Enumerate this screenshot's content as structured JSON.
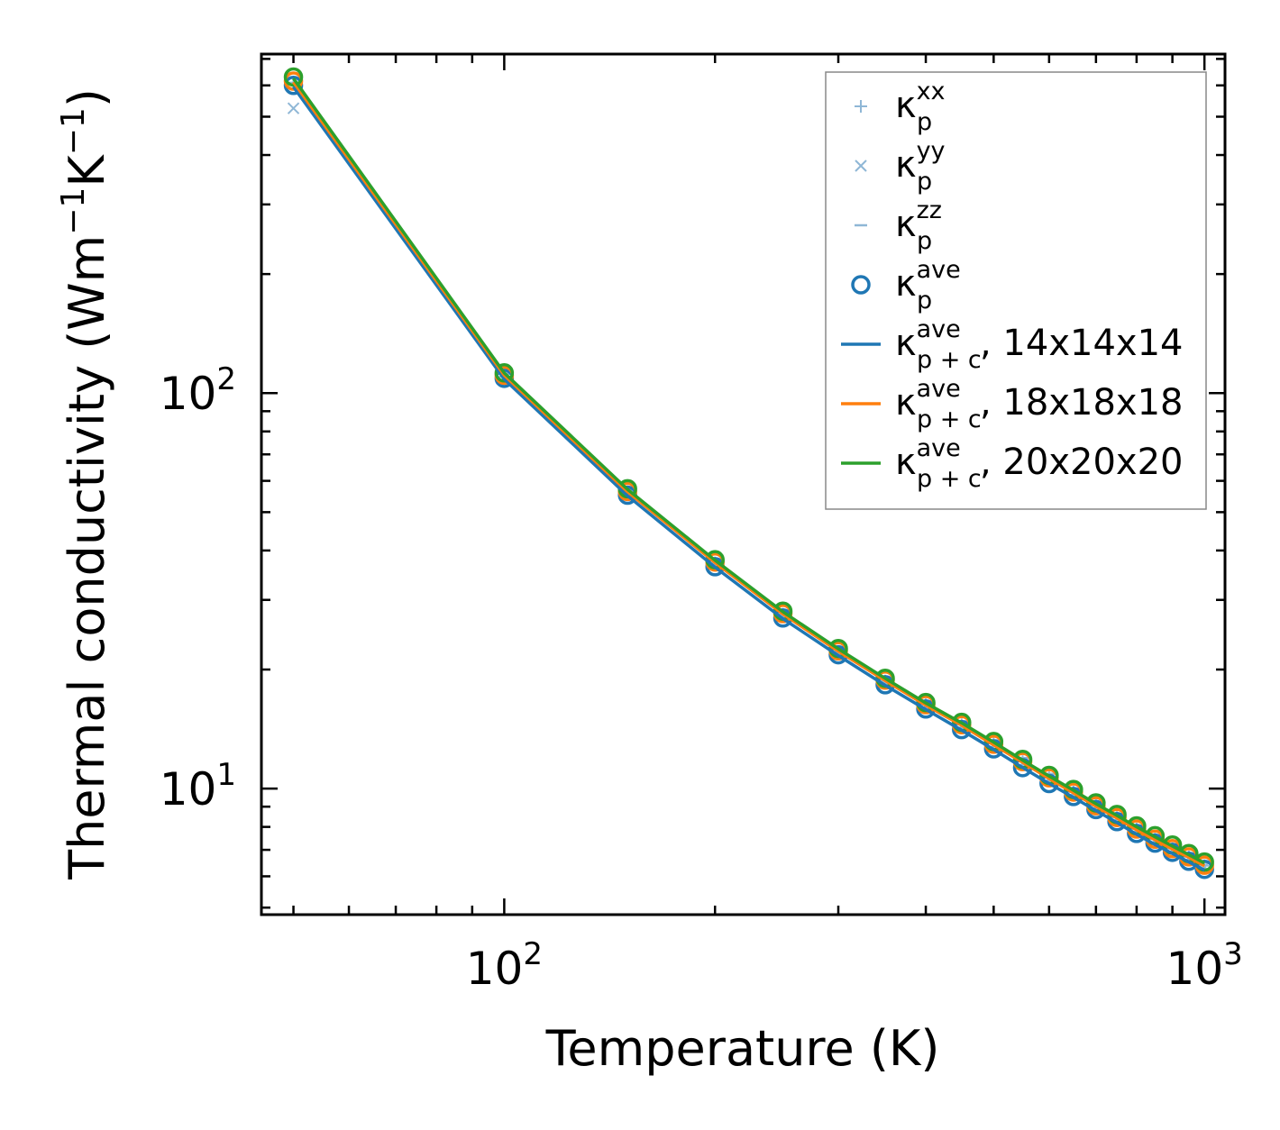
{
  "chart_data": {
    "type": "line",
    "xscale": "log",
    "yscale": "log",
    "xlim": [
      45,
      1070
    ],
    "ylim": [
      4.8,
      720
    ],
    "xlabel": "Temperature (K)",
    "ylabel": {
      "main": "Thermal conductivity (Wm",
      "exp1": "−1",
      "k": "K",
      "exp2": "−1",
      "close": ")"
    },
    "xticks": [
      {
        "value": 100,
        "base": "10",
        "exp": "2"
      },
      {
        "value": 1000,
        "base": "10",
        "exp": "3"
      }
    ],
    "yticks": [
      {
        "value": 10,
        "base": "10",
        "exp": "1"
      },
      {
        "value": 100,
        "base": "10",
        "exp": "2"
      }
    ],
    "x": [
      50,
      100,
      150,
      200,
      250,
      300,
      350,
      400,
      450,
      500,
      550,
      600,
      650,
      700,
      750,
      800,
      850,
      900,
      950,
      1000
    ],
    "component_series": [
      {
        "key": "xx",
        "marker": "plus",
        "values": [
          610,
          110,
          56,
          37.2,
          27.6,
          22.2,
          18.7,
          16.3,
          14.5,
          13.0,
          11.7,
          10.65,
          9.8,
          9.05,
          8.45,
          7.9,
          7.45,
          7.05,
          6.72,
          6.38
        ]
      },
      {
        "key": "yy",
        "marker": "x",
        "values": [
          525,
          109,
          55.6,
          37.0,
          27.4,
          22.0,
          18.6,
          16.2,
          14.4,
          12.9,
          11.6,
          10.6,
          9.75,
          9.0,
          8.4,
          7.85,
          7.4,
          7.0,
          6.68,
          6.34
        ]
      },
      {
        "key": "zz",
        "marker": "dash",
        "values": [
          720,
          112,
          57.2,
          38.0,
          28.2,
          22.7,
          19.1,
          16.6,
          14.8,
          13.25,
          11.95,
          10.9,
          10.0,
          9.25,
          8.6,
          8.05,
          7.6,
          7.2,
          6.85,
          6.5
        ]
      }
    ],
    "ave_markers": [
      {
        "values": [
          600,
          109,
          55.2,
          36.4,
          27.0,
          21.8,
          18.3,
          15.9,
          14.1,
          12.6,
          11.3,
          10.3,
          9.55,
          8.85,
          8.25,
          7.7,
          7.28,
          6.9,
          6.55,
          6.25
        ]
      },
      {
        "values": [
          615,
          111,
          56.4,
          37.4,
          27.7,
          22.3,
          18.8,
          16.3,
          14.5,
          12.95,
          11.7,
          10.65,
          9.8,
          9.05,
          8.45,
          7.9,
          7.45,
          7.05,
          6.72,
          6.4
        ]
      },
      {
        "values": [
          630,
          112.5,
          57.3,
          37.9,
          28.1,
          22.6,
          19.0,
          16.5,
          14.7,
          13.15,
          11.85,
          10.8,
          9.95,
          9.2,
          8.6,
          8.05,
          7.6,
          7.2,
          6.85,
          6.52
        ]
      }
    ],
    "series": [
      {
        "name": "14x14x14",
        "color": "#1f77b4",
        "values": [
          595,
          108.5,
          55.0,
          36.3,
          26.9,
          21.7,
          18.25,
          15.85,
          14.05,
          12.55,
          11.3,
          10.3,
          9.5,
          8.8,
          8.2,
          7.66,
          7.22,
          6.85,
          6.52,
          6.22
        ]
      },
      {
        "name": "18x18x18",
        "color": "#ff7f0e",
        "values": [
          612,
          111,
          56.3,
          37.3,
          27.65,
          22.25,
          18.75,
          16.25,
          14.45,
          12.9,
          11.65,
          10.6,
          9.75,
          9.02,
          8.42,
          7.86,
          7.42,
          7.03,
          6.7,
          6.38
        ]
      },
      {
        "name": "20x20x20",
        "color": "#2ca02c",
        "values": [
          625,
          112.5,
          57.1,
          37.8,
          28.0,
          22.55,
          19.0,
          16.45,
          14.65,
          13.1,
          11.8,
          10.75,
          9.9,
          9.15,
          8.55,
          8.0,
          7.55,
          7.15,
          6.8,
          6.48
        ]
      }
    ],
    "legend": {
      "position": "top-right",
      "entries": [
        {
          "marker": "plus",
          "color": "#8fb7d6",
          "sym": "κ",
          "sub": "p",
          "sup": "xx",
          "suffix": ""
        },
        {
          "marker": "x",
          "color": "#8fb7d6",
          "sym": "κ",
          "sub": "p",
          "sup": "yy",
          "suffix": ""
        },
        {
          "marker": "dash",
          "color": "#8fb7d6",
          "sym": "κ",
          "sub": "p",
          "sup": "zz",
          "suffix": ""
        },
        {
          "marker": "circle",
          "color": "#1f77b4",
          "sym": "κ",
          "sub": "p",
          "sup": "ave",
          "suffix": ""
        },
        {
          "marker": "line",
          "color": "#1f77b4",
          "sym": "κ",
          "sub": "p + c",
          "sup": "ave",
          "suffix": ", 14x14x14"
        },
        {
          "marker": "line",
          "color": "#ff7f0e",
          "sym": "κ",
          "sub": "p + c",
          "sup": "ave",
          "suffix": ", 18x18x18"
        },
        {
          "marker": "line",
          "color": "#2ca02c",
          "sym": "κ",
          "sub": "p + c",
          "sup": "ave",
          "suffix": ", 20x20x20"
        }
      ]
    },
    "colors": {
      "c14": "#1f77b4",
      "c18": "#ff7f0e",
      "c20": "#2ca02c",
      "component": "#8fb7d6"
    }
  }
}
